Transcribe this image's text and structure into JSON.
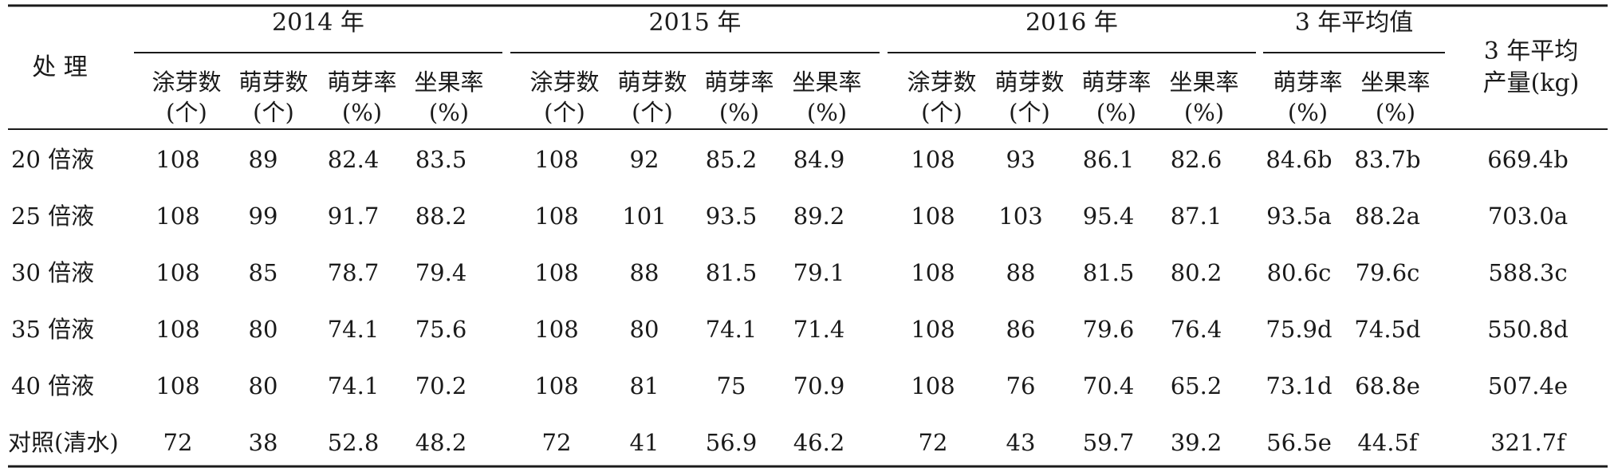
{
  "table": {
    "header": {
      "treatment": "处 理",
      "years": [
        "2014 年",
        "2015 年",
        "2016 年",
        "3 年平均值"
      ],
      "yield": [
        "3 年平均",
        "产量(kg)"
      ],
      "year_sub": [
        {
          "l1": "涂芽数",
          "l2": "(个)"
        },
        {
          "l1": "萌芽数",
          "l2": "(个)"
        },
        {
          "l1": "萌芽率",
          "l2": "(%)"
        },
        {
          "l1": "坐果率",
          "l2": "(%)"
        }
      ],
      "avg_sub": [
        {
          "l1": "萌芽率",
          "l2": "(%)"
        },
        {
          "l1": "坐果率",
          "l2": "(%)"
        }
      ]
    },
    "rows": [
      {
        "treatment": "20 倍液",
        "cells": [
          "108",
          "89",
          "82.4",
          "83.5",
          "108",
          "92",
          "85.2",
          "84.9",
          "108",
          "93",
          "86.1",
          "82.6",
          "84.6b",
          "83.7b",
          "669.4b"
        ]
      },
      {
        "treatment": "25 倍液",
        "cells": [
          "108",
          "99",
          "91.7",
          "88.2",
          "108",
          "101",
          "93.5",
          "89.2",
          "108",
          "103",
          "95.4",
          "87.1",
          "93.5a",
          "88.2a",
          "703.0a"
        ]
      },
      {
        "treatment": "30 倍液",
        "cells": [
          "108",
          "85",
          "78.7",
          "79.4",
          "108",
          "88",
          "81.5",
          "79.1",
          "108",
          "88",
          "81.5",
          "80.2",
          "80.6c",
          "79.6c",
          "588.3c"
        ]
      },
      {
        "treatment": "35 倍液",
        "cells": [
          "108",
          "80",
          "74.1",
          "75.6",
          "108",
          "80",
          "74.1",
          "71.4",
          "108",
          "86",
          "79.6",
          "76.4",
          "75.9d",
          "74.5d",
          "550.8d"
        ]
      },
      {
        "treatment": "40 倍液",
        "cells": [
          "108",
          "80",
          "74.1",
          "70.2",
          "108",
          "81",
          "75",
          "70.9",
          "108",
          "76",
          "70.4",
          "65.2",
          "73.1d",
          "68.8e",
          "507.4e"
        ]
      },
      {
        "treatment": "对照(清水)",
        "cells": [
          "72",
          "38",
          "52.8",
          "48.2",
          "72",
          "41",
          "56.9",
          "46.2",
          "72",
          "43",
          "59.7",
          "39.2",
          "56.5e",
          "44.5f",
          "321.7f"
        ]
      }
    ]
  }
}
